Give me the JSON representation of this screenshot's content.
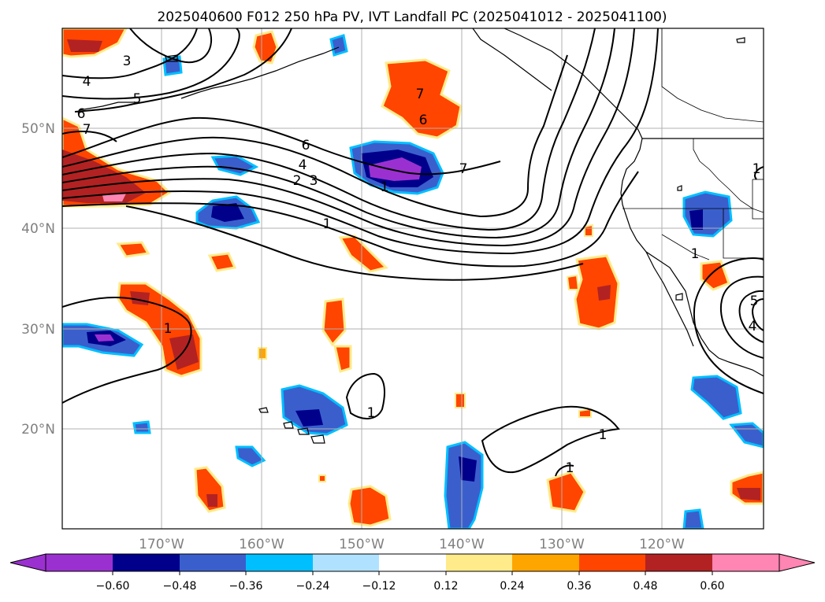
{
  "title": "2025040600 F012 250 hPa PV, IVT Landfall PC (2025041012 - 2025041100)",
  "map": {
    "lon_range": [
      -180,
      -110
    ],
    "lat_range": [
      10,
      60
    ],
    "gridlines": true,
    "lat_labels": [
      "50°N",
      "40°N",
      "30°N",
      "20°N"
    ],
    "lon_labels": [
      "170°W",
      "160°W",
      "150°W",
      "140°W",
      "130°W",
      "120°W"
    ]
  },
  "contour_labels": [
    "3",
    "4",
    "5",
    "6",
    "7",
    "6",
    "4",
    "3",
    "2",
    "1",
    "7",
    "6",
    "7",
    "1",
    "1",
    "1",
    "1",
    "1",
    "1",
    "4",
    "5",
    "1"
  ],
  "colorbar": {
    "ticks": [
      "−0.60",
      "−0.48",
      "−0.36",
      "−0.24",
      "−0.12",
      "0.12",
      "0.24",
      "0.36",
      "0.48",
      "0.60"
    ],
    "colors": [
      "#9b30d0",
      "#00008b",
      "#3a5fcd",
      "#00bfff",
      "#b0e2ff",
      "#ffffff",
      "#ffeb8a",
      "#ffa500",
      "#ff4500",
      "#b22222",
      "#ff85b3",
      "#ff85b3"
    ]
  },
  "colors": {
    "neg_strong": "#9b30d0",
    "neg_dark": "#00008b",
    "neg_mid": "#3a5fcd",
    "neg_light": "#00bfff",
    "neg_pale": "#b0e2ff",
    "pos_pale": "#ffeb8a",
    "pos_light": "#ffa500",
    "pos_mid": "#ff4500",
    "pos_dark": "#b22222",
    "pos_strong": "#ff85b3"
  }
}
